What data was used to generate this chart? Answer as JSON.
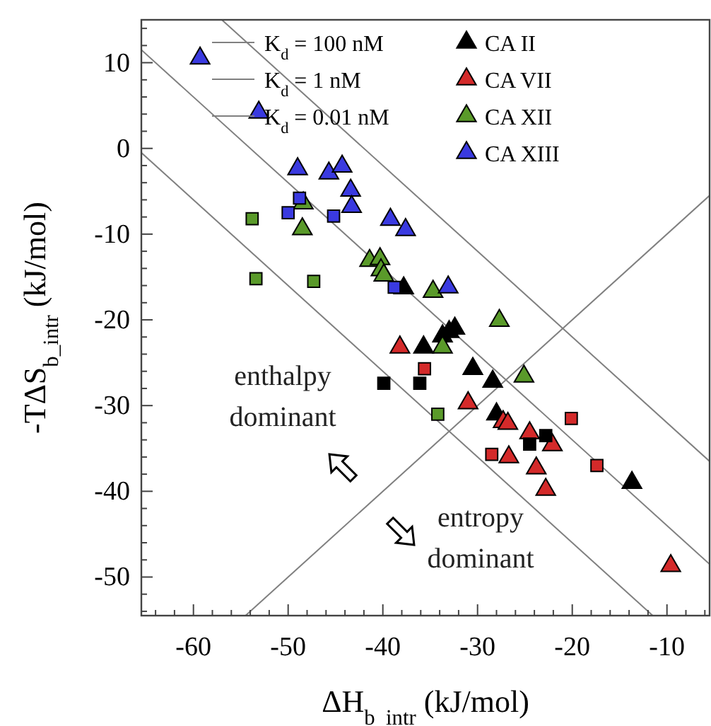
{
  "chart_data": {
    "type": "scatter",
    "xlabel": "ΔH$_{b_intr}$ (kJ/mol)",
    "ylabel": "-TΔS$_{b_intr}$ (kJ/mol)",
    "xlim": [
      -65.5,
      -5.5
    ],
    "ylim": [
      -54.5,
      15
    ],
    "xticks": [
      {
        "value": -64,
        "label": null
      },
      {
        "value": -62,
        "label": null
      },
      -60,
      {
        "value": -58,
        "label": null
      },
      {
        "value": -56,
        "label": null
      },
      {
        "value": -54,
        "label": null
      },
      {
        "value": -52,
        "label": null
      },
      -50,
      {
        "value": -48,
        "label": null
      },
      {
        "value": -46,
        "label": null
      },
      {
        "value": -44,
        "label": null
      },
      {
        "value": -42,
        "label": null
      },
      -40,
      {
        "value": -38,
        "label": null
      },
      {
        "value": -36,
        "label": null
      },
      {
        "value": -34,
        "label": null
      },
      {
        "value": -32,
        "label": null
      },
      -30,
      {
        "value": -28,
        "label": null
      },
      {
        "value": -26,
        "label": null
      },
      {
        "value": -24,
        "label": null
      },
      {
        "value": -22,
        "label": null
      },
      -20,
      {
        "value": -18,
        "label": null
      },
      {
        "value": -16,
        "label": null
      },
      {
        "value": -14,
        "label": null
      },
      {
        "value": -12,
        "label": null
      },
      -10,
      {
        "value": -8,
        "label": null
      },
      {
        "value": -6,
        "label": null
      }
    ],
    "yticks": [
      {
        "value": -54,
        "label": null
      },
      {
        "value": -52,
        "label": null
      },
      -50,
      {
        "value": -48,
        "label": null
      },
      {
        "value": -46,
        "label": null
      },
      {
        "value": -44,
        "label": null
      },
      {
        "value": -42,
        "label": null
      },
      -40,
      {
        "value": -38,
        "label": null
      },
      {
        "value": -36,
        "label": null
      },
      {
        "value": -34,
        "label": null
      },
      {
        "value": -32,
        "label": null
      },
      -30,
      {
        "value": -28,
        "label": null
      },
      {
        "value": -26,
        "label": null
      },
      {
        "value": -24,
        "label": null
      },
      {
        "value": -22,
        "label": null
      },
      -20,
      {
        "value": -18,
        "label": null
      },
      {
        "value": -16,
        "label": null
      },
      {
        "value": -14,
        "label": null
      },
      {
        "value": -12,
        "label": null
      },
      -10,
      {
        "value": -8,
        "label": null
      },
      {
        "value": -6,
        "label": null
      },
      {
        "value": -4,
        "label": null
      },
      {
        "value": -2,
        "label": null
      },
      0,
      {
        "value": 2,
        "label": null
      },
      {
        "value": 4,
        "label": null
      },
      {
        "value": 6,
        "label": null
      },
      {
        "value": 8,
        "label": null
      },
      10,
      {
        "value": 12,
        "label": null
      },
      {
        "value": 14,
        "label": null
      }
    ],
    "grid": false,
    "legend": "top",
    "series": [
      {
        "type": "line",
        "name": "K$_{d}$ = 100 nM",
        "color": "#808080",
        "line_style": "solid",
        "x": [
          -57,
          -5.5
        ],
        "values": [
          15,
          -36.5
        ]
      },
      {
        "type": "line",
        "name": "K$_{d}$ = 1 nM",
        "color": "#808080",
        "line_style": "solid",
        "x": [
          -65.5,
          -5.5
        ],
        "values": [
          11.5,
          -48.5
        ]
      },
      {
        "type": "line",
        "name": "K$_{d}$ = 0.01 nM",
        "color": "#808080",
        "line_style": "solid",
        "x": [
          -65.5,
          -11.5
        ],
        "values": [
          -0.5,
          -54.5
        ]
      },
      {
        "type": "line",
        "color": "#808080",
        "line_style": "solid",
        "x": [
          -54.5,
          -5.5
        ],
        "values": [
          -54.5,
          -5.5
        ]
      },
      {
        "name": "CA II",
        "color": "#000000",
        "marker": "triangle",
        "x": [
          -37.8,
          -35.7,
          -33.7,
          -33.0,
          -32.4,
          -30.5,
          -28.4,
          -28.0,
          -13.7
        ],
        "values": [
          -16.3,
          -23.2,
          -21.9,
          -21.4,
          -21.0,
          -25.7,
          -27.2,
          -31.0,
          -39.0
        ]
      },
      {
        "name": "CA VII",
        "color": "#d42a2a",
        "marker": "triangle",
        "x": [
          -38.2,
          -31.0,
          -27.3,
          -26.8,
          -26.7,
          -24.5,
          -23.8,
          -22.1,
          -22.8,
          -9.6
        ],
        "values": [
          -23.2,
          -29.7,
          -31.9,
          -32.1,
          -36.0,
          -33.2,
          -37.3,
          -34.6,
          -39.8,
          -48.7
        ]
      },
      {
        "name": "CA XII",
        "color": "#5a9a2a",
        "marker": "triangle",
        "x": [
          -48.5,
          -48.4,
          -41.4,
          -40.3,
          -40.2,
          -39.9,
          -34.7,
          -27.7,
          -33.7,
          -25.1
        ],
        "values": [
          -9.4,
          -6.4,
          -13.1,
          -12.9,
          -14.2,
          -14.8,
          -16.7,
          -20.1,
          -23.2,
          -26.6
        ]
      },
      {
        "name": "CA XIII",
        "color": "#3a3ae0",
        "marker": "triangle",
        "x": [
          -59.3,
          -53.1,
          -49.0,
          -45.7,
          -44.3,
          -43.4,
          -43.3,
          -39.2,
          -37.6,
          -33.1
        ],
        "values": [
          10.5,
          4.2,
          -2.4,
          -2.9,
          -2.1,
          -4.9,
          -6.8,
          -8.3,
          -9.5,
          -16.2
        ]
      },
      {
        "color": "#000000",
        "marker": "square",
        "x": [
          -39.9,
          -36.1,
          -24.5,
          -22.8
        ],
        "values": [
          -27.4,
          -27.4,
          -34.5,
          -33.5
        ]
      },
      {
        "color": "#d42a2a",
        "marker": "square",
        "x": [
          -35.6,
          -28.5,
          -20.1,
          -17.4
        ],
        "values": [
          -25.7,
          -35.7,
          -31.5,
          -37.0
        ]
      },
      {
        "color": "#5a9a2a",
        "marker": "square",
        "x": [
          -53.8,
          -53.4,
          -47.3,
          -34.2
        ],
        "values": [
          -8.2,
          -15.2,
          -15.5,
          -31.0
        ]
      },
      {
        "color": "#3a3ae0",
        "marker": "square",
        "x": [
          -48.8,
          -50.0,
          -45.2,
          -38.8
        ],
        "values": [
          -5.8,
          -7.5,
          -7.9,
          -16.2
        ]
      }
    ],
    "annotations": [
      "enthalpy dominant",
      "entropy dominant"
    ]
  }
}
